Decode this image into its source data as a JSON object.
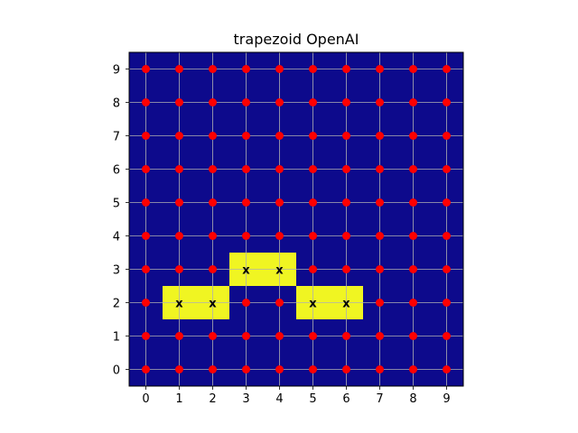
{
  "chart_data": {
    "type": "heatmap",
    "title": "trapezoid OpenAI",
    "xlabel": "",
    "ylabel": "",
    "x_ticks": [
      "0",
      "1",
      "2",
      "3",
      "4",
      "5",
      "6",
      "7",
      "8",
      "9"
    ],
    "y_ticks": [
      "0",
      "1",
      "2",
      "3",
      "4",
      "5",
      "6",
      "7",
      "8",
      "9"
    ],
    "xlim": [
      -0.5,
      9.5
    ],
    "ylim": [
      -0.5,
      9.5
    ],
    "grid": true,
    "colors": {
      "background": "#0d0a8c",
      "highlight": "#f0f522",
      "point": "#ff0000",
      "grid": "#b0b0b0"
    },
    "highlighted_cells": [
      {
        "x": 1,
        "y": 2,
        "label": "x"
      },
      {
        "x": 2,
        "y": 2,
        "label": "x"
      },
      {
        "x": 3,
        "y": 3,
        "label": "x"
      },
      {
        "x": 4,
        "y": 3,
        "label": "x"
      },
      {
        "x": 5,
        "y": 2,
        "label": "x"
      },
      {
        "x": 6,
        "y": 2,
        "label": "x"
      }
    ]
  }
}
